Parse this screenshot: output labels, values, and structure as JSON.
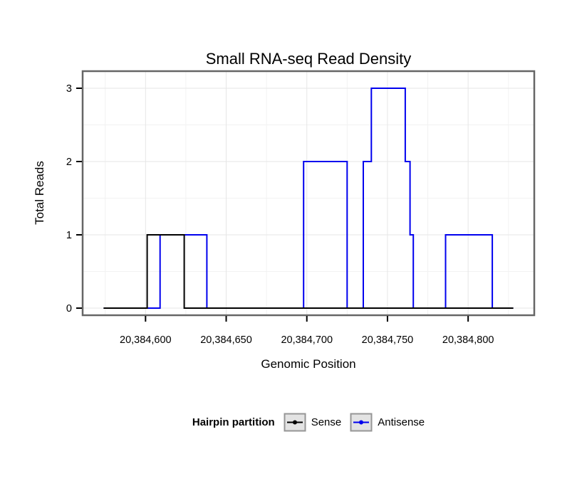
{
  "chart_data": {
    "type": "line",
    "subtype": "step",
    "title": "Small RNA-seq Read Density",
    "xlabel": "Genomic Position",
    "ylabel": "Total Reads",
    "xlim": [
      20384561,
      20384841
    ],
    "ylim": [
      0,
      3
    ],
    "grid": "major-and-minor",
    "x_ticks": [
      {
        "value": 20384600,
        "label": "20,384,600"
      },
      {
        "value": 20384650,
        "label": "20,384,650"
      },
      {
        "value": 20384700,
        "label": "20,384,700"
      },
      {
        "value": 20384750,
        "label": "20,384,750"
      },
      {
        "value": 20384800,
        "label": "20,384,800"
      }
    ],
    "y_ticks": [
      {
        "value": 0,
        "label": "0"
      },
      {
        "value": 1,
        "label": "1"
      },
      {
        "value": 2,
        "label": "2"
      },
      {
        "value": 3,
        "label": "3"
      }
    ],
    "legend": {
      "title": "Hairpin partition",
      "position": "bottom"
    },
    "series": [
      {
        "name": "Sense",
        "color": "#000000",
        "segments": [
          {
            "from": 20384574,
            "to": 20384601,
            "value": 0
          },
          {
            "from": 20384601,
            "to": 20384624,
            "value": 1
          },
          {
            "from": 20384624,
            "to": 20384828,
            "value": 0
          }
        ]
      },
      {
        "name": "Antisense",
        "color": "#0000EE",
        "segments": [
          {
            "from": 20384574,
            "to": 20384609,
            "value": 0
          },
          {
            "from": 20384609,
            "to": 20384638,
            "value": 1
          },
          {
            "from": 20384638,
            "to": 20384698,
            "value": 0
          },
          {
            "from": 20384698,
            "to": 20384725,
            "value": 2
          },
          {
            "from": 20384725,
            "to": 20384735,
            "value": 0
          },
          {
            "from": 20384735,
            "to": 20384740,
            "value": 2
          },
          {
            "from": 20384740,
            "to": 20384761,
            "value": 3
          },
          {
            "from": 20384761,
            "to": 20384764,
            "value": 2
          },
          {
            "from": 20384764,
            "to": 20384766,
            "value": 1
          },
          {
            "from": 20384766,
            "to": 20384786,
            "value": 0
          },
          {
            "from": 20384786,
            "to": 20384815,
            "value": 1
          },
          {
            "from": 20384815,
            "to": 20384828,
            "value": 0
          }
        ]
      }
    ]
  }
}
